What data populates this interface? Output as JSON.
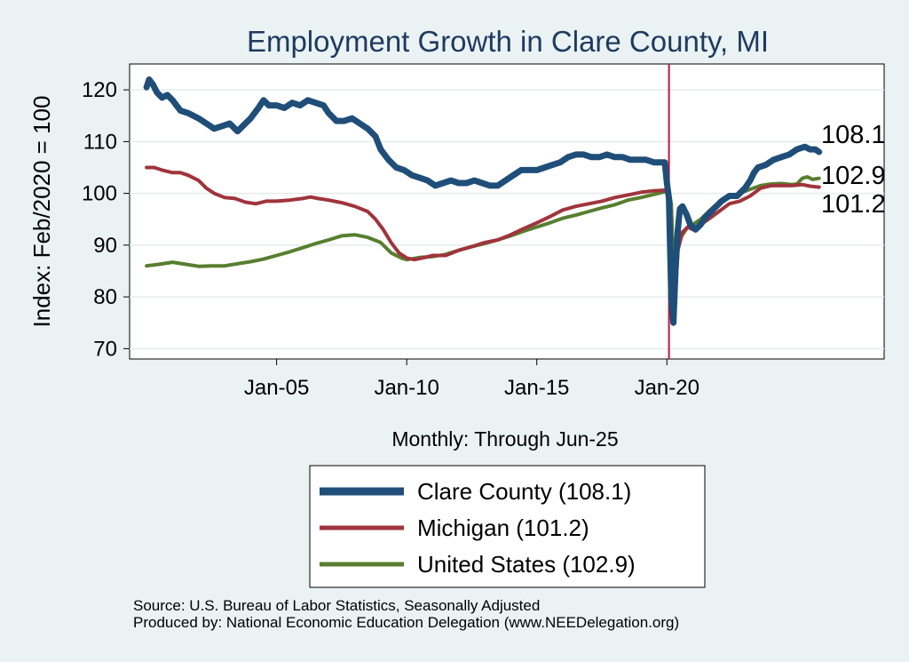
{
  "chart_data": {
    "type": "line",
    "title": "Employment Growth in Clare  County, MI",
    "ylabel": "Index: Feb/2020 = 100",
    "xlabel": "Monthly: Through Jun-25",
    "ylim": [
      68,
      125
    ],
    "yticks": [
      70,
      80,
      90,
      100,
      110,
      120
    ],
    "x_range": [
      2000.0,
      2025.85
    ],
    "xticks": [
      {
        "label": "Jan-05",
        "x": 2005.0
      },
      {
        "label": "Jan-10",
        "x": 2010.0
      },
      {
        "label": "Jan-15",
        "x": 2015.0
      },
      {
        "label": "Jan-20",
        "x": 2020.0
      }
    ],
    "reference_line": {
      "x": 2020.08,
      "color": "#c0143c"
    },
    "series": [
      {
        "name": "Clare  County",
        "legend": "Clare  County (108.1)",
        "end_label": "108.1",
        "color": "#1f4e79",
        "width": 7,
        "points": [
          [
            2000.0,
            120.5
          ],
          [
            2000.1,
            122
          ],
          [
            2000.25,
            121
          ],
          [
            2000.4,
            119.5
          ],
          [
            2000.6,
            118.5
          ],
          [
            2000.8,
            119
          ],
          [
            2001.0,
            118
          ],
          [
            2001.3,
            116
          ],
          [
            2001.6,
            115.5
          ],
          [
            2002.0,
            114.5
          ],
          [
            2002.3,
            113.5
          ],
          [
            2002.6,
            112.5
          ],
          [
            2002.9,
            113
          ],
          [
            2003.2,
            113.5
          ],
          [
            2003.5,
            112
          ],
          [
            2003.8,
            113.5
          ],
          [
            2004.0,
            114.5
          ],
          [
            2004.3,
            116.5
          ],
          [
            2004.5,
            118
          ],
          [
            2004.7,
            117
          ],
          [
            2005.0,
            117
          ],
          [
            2005.3,
            116.5
          ],
          [
            2005.6,
            117.5
          ],
          [
            2005.9,
            117
          ],
          [
            2006.2,
            118
          ],
          [
            2006.5,
            117.5
          ],
          [
            2006.8,
            117
          ],
          [
            2007.0,
            115.5
          ],
          [
            2007.3,
            114
          ],
          [
            2007.6,
            114
          ],
          [
            2007.9,
            114.5
          ],
          [
            2008.2,
            113.5
          ],
          [
            2008.5,
            112.5
          ],
          [
            2008.8,
            111
          ],
          [
            2009.0,
            108.5
          ],
          [
            2009.3,
            106.5
          ],
          [
            2009.6,
            105
          ],
          [
            2009.9,
            104.5
          ],
          [
            2010.2,
            103.5
          ],
          [
            2010.5,
            103
          ],
          [
            2010.8,
            102.5
          ],
          [
            2011.1,
            101.5
          ],
          [
            2011.4,
            102
          ],
          [
            2011.7,
            102.5
          ],
          [
            2012.0,
            102
          ],
          [
            2012.3,
            102
          ],
          [
            2012.6,
            102.5
          ],
          [
            2012.9,
            102
          ],
          [
            2013.2,
            101.5
          ],
          [
            2013.5,
            101.5
          ],
          [
            2013.8,
            102.5
          ],
          [
            2014.1,
            103.5
          ],
          [
            2014.4,
            104.5
          ],
          [
            2014.7,
            104.5
          ],
          [
            2015.0,
            104.5
          ],
          [
            2015.3,
            105
          ],
          [
            2015.6,
            105.5
          ],
          [
            2015.9,
            106
          ],
          [
            2016.2,
            107
          ],
          [
            2016.5,
            107.5
          ],
          [
            2016.8,
            107.5
          ],
          [
            2017.1,
            107
          ],
          [
            2017.4,
            107
          ],
          [
            2017.7,
            107.5
          ],
          [
            2018.0,
            107
          ],
          [
            2018.3,
            107
          ],
          [
            2018.6,
            106.5
          ],
          [
            2018.9,
            106.5
          ],
          [
            2019.2,
            106.5
          ],
          [
            2019.5,
            106
          ],
          [
            2019.8,
            106
          ],
          [
            2019.92,
            106
          ],
          [
            2020.0,
            102
          ],
          [
            2020.08,
            99
          ],
          [
            2020.17,
            80
          ],
          [
            2020.25,
            75
          ],
          [
            2020.33,
            85
          ],
          [
            2020.42,
            93
          ],
          [
            2020.5,
            97
          ],
          [
            2020.6,
            97.5
          ],
          [
            2020.75,
            96
          ],
          [
            2020.9,
            94
          ],
          [
            2021.1,
            93
          ],
          [
            2021.3,
            94
          ],
          [
            2021.5,
            95.5
          ],
          [
            2021.8,
            97
          ],
          [
            2022.1,
            98.5
          ],
          [
            2022.4,
            99.5
          ],
          [
            2022.7,
            99.5
          ],
          [
            2023.0,
            101
          ],
          [
            2023.2,
            102.5
          ],
          [
            2023.35,
            104
          ],
          [
            2023.5,
            105
          ],
          [
            2023.8,
            105.5
          ],
          [
            2024.1,
            106.5
          ],
          [
            2024.4,
            107
          ],
          [
            2024.7,
            107.5
          ],
          [
            2025.0,
            108.5
          ],
          [
            2025.3,
            109
          ],
          [
            2025.5,
            108.5
          ],
          [
            2025.7,
            108.5
          ],
          [
            2025.85,
            108
          ]
        ]
      },
      {
        "name": "Michigan",
        "legend": "Michigan (101.2)",
        "end_label": "101.2",
        "color": "#a0343c",
        "width": 4,
        "points": [
          [
            2000.0,
            105
          ],
          [
            2000.3,
            105
          ],
          [
            2000.6,
            104.5
          ],
          [
            2001.0,
            104
          ],
          [
            2001.3,
            104
          ],
          [
            2001.6,
            103.5
          ],
          [
            2002.0,
            102.5
          ],
          [
            2002.3,
            101
          ],
          [
            2002.6,
            100
          ],
          [
            2003.0,
            99.2
          ],
          [
            2003.4,
            99
          ],
          [
            2003.8,
            98.3
          ],
          [
            2004.2,
            98
          ],
          [
            2004.6,
            98.5
          ],
          [
            2005.0,
            98.5
          ],
          [
            2005.5,
            98.7
          ],
          [
            2006.0,
            99
          ],
          [
            2006.3,
            99.3
          ],
          [
            2006.6,
            99
          ],
          [
            2007.0,
            98.7
          ],
          [
            2007.5,
            98.2
          ],
          [
            2008.0,
            97.5
          ],
          [
            2008.5,
            96.5
          ],
          [
            2008.8,
            95
          ],
          [
            2009.1,
            93
          ],
          [
            2009.4,
            90.5
          ],
          [
            2009.7,
            88.5
          ],
          [
            2010.0,
            87.5
          ],
          [
            2010.3,
            87.2
          ],
          [
            2010.6,
            87.5
          ],
          [
            2011.0,
            88
          ],
          [
            2011.5,
            88
          ],
          [
            2012.0,
            89
          ],
          [
            2012.5,
            89.7
          ],
          [
            2013.0,
            90.5
          ],
          [
            2013.5,
            91
          ],
          [
            2014.0,
            92
          ],
          [
            2014.5,
            93.2
          ],
          [
            2015.0,
            94.3
          ],
          [
            2015.5,
            95.5
          ],
          [
            2016.0,
            96.8
          ],
          [
            2016.5,
            97.5
          ],
          [
            2017.0,
            98
          ],
          [
            2017.5,
            98.5
          ],
          [
            2018.0,
            99.2
          ],
          [
            2018.5,
            99.7
          ],
          [
            2019.0,
            100.2
          ],
          [
            2019.5,
            100.5
          ],
          [
            2019.9,
            100.6
          ],
          [
            2020.08,
            100
          ],
          [
            2020.17,
            88
          ],
          [
            2020.25,
            75
          ],
          [
            2020.33,
            80
          ],
          [
            2020.42,
            89
          ],
          [
            2020.6,
            92.5
          ],
          [
            2020.8,
            93.5
          ],
          [
            2021.0,
            93
          ],
          [
            2021.3,
            94
          ],
          [
            2021.6,
            95
          ],
          [
            2022.0,
            96.5
          ],
          [
            2022.4,
            98
          ],
          [
            2022.8,
            98.5
          ],
          [
            2023.2,
            99.5
          ],
          [
            2023.6,
            101
          ],
          [
            2024.0,
            101.5
          ],
          [
            2024.4,
            101.5
          ],
          [
            2024.8,
            101.5
          ],
          [
            2025.2,
            101.7
          ],
          [
            2025.5,
            101.4
          ],
          [
            2025.85,
            101.2
          ]
        ]
      },
      {
        "name": "United States",
        "legend": "United States (102.9)",
        "end_label": "102.9",
        "color": "#587e2f",
        "width": 4,
        "points": [
          [
            2000.0,
            86
          ],
          [
            2000.5,
            86.3
          ],
          [
            2001.0,
            86.7
          ],
          [
            2001.5,
            86.3
          ],
          [
            2002.0,
            85.9
          ],
          [
            2002.5,
            86
          ],
          [
            2003.0,
            86
          ],
          [
            2003.5,
            86.4
          ],
          [
            2004.0,
            86.8
          ],
          [
            2004.5,
            87.3
          ],
          [
            2005.0,
            88
          ],
          [
            2005.5,
            88.7
          ],
          [
            2006.0,
            89.5
          ],
          [
            2006.5,
            90.3
          ],
          [
            2007.0,
            91
          ],
          [
            2007.5,
            91.8
          ],
          [
            2008.0,
            92
          ],
          [
            2008.5,
            91.5
          ],
          [
            2009.0,
            90.5
          ],
          [
            2009.4,
            88.5
          ],
          [
            2009.8,
            87.5
          ],
          [
            2010.0,
            87.2
          ],
          [
            2010.5,
            87.6
          ],
          [
            2011.0,
            87.8
          ],
          [
            2011.5,
            88.2
          ],
          [
            2012.0,
            89
          ],
          [
            2012.5,
            89.7
          ],
          [
            2013.0,
            90.3
          ],
          [
            2013.5,
            91
          ],
          [
            2014.0,
            91.8
          ],
          [
            2014.5,
            92.7
          ],
          [
            2015.0,
            93.5
          ],
          [
            2015.5,
            94.3
          ],
          [
            2016.0,
            95.2
          ],
          [
            2016.5,
            95.8
          ],
          [
            2017.0,
            96.5
          ],
          [
            2017.5,
            97.2
          ],
          [
            2018.0,
            97.8
          ],
          [
            2018.5,
            98.7
          ],
          [
            2019.0,
            99.2
          ],
          [
            2019.5,
            99.8
          ],
          [
            2019.9,
            100.3
          ],
          [
            2020.08,
            100.3
          ],
          [
            2020.17,
            98
          ],
          [
            2020.25,
            86
          ],
          [
            2020.33,
            87
          ],
          [
            2020.42,
            90.5
          ],
          [
            2020.6,
            92
          ],
          [
            2020.8,
            93.5
          ],
          [
            2021.0,
            94
          ],
          [
            2021.3,
            95
          ],
          [
            2021.6,
            96.5
          ],
          [
            2022.0,
            98.3
          ],
          [
            2022.4,
            99.3
          ],
          [
            2022.8,
            100
          ],
          [
            2023.2,
            100.8
          ],
          [
            2023.6,
            101.5
          ],
          [
            2024.0,
            101.8
          ],
          [
            2024.4,
            101.9
          ],
          [
            2024.8,
            101.7
          ],
          [
            2025.0,
            101.8
          ],
          [
            2025.2,
            102.9
          ],
          [
            2025.4,
            103.2
          ],
          [
            2025.6,
            102.7
          ],
          [
            2025.85,
            102.9
          ]
        ]
      }
    ],
    "source_lines": [
      "Source: U.S. Bureau of Labor Statistics, Seasonally Adjusted",
      "Produced by: National Economic Education Delegation (www.NEEDelegation.org)"
    ]
  }
}
